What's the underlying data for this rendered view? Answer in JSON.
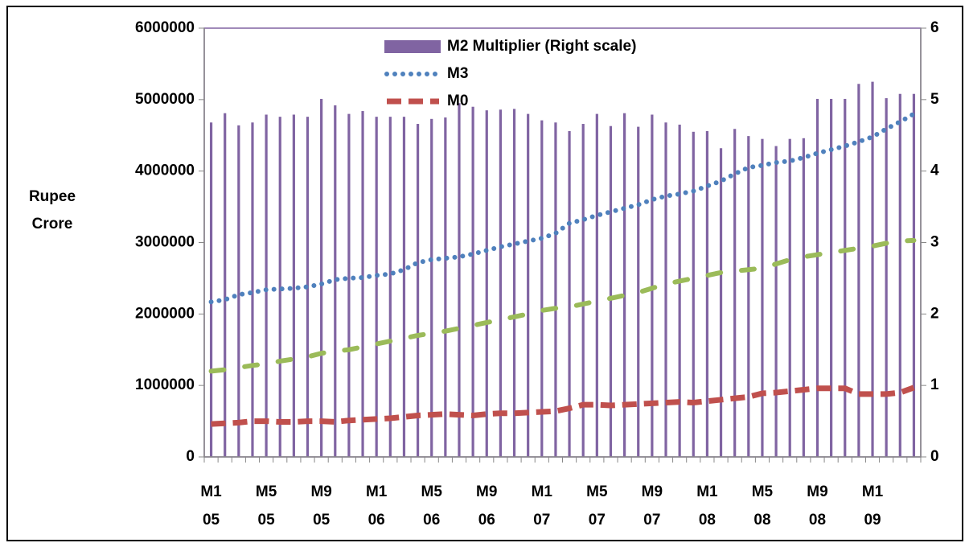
{
  "chart_data": {
    "type": "bar-line",
    "y_label": "Rupee Crore",
    "categories": [
      "M1 05",
      null,
      null,
      null,
      "M5 05",
      null,
      null,
      null,
      "M9 05",
      null,
      null,
      null,
      "M1 06",
      null,
      null,
      null,
      "M5 06",
      null,
      null,
      null,
      "M9 06",
      null,
      null,
      null,
      "M1 07",
      null,
      null,
      null,
      "M5 07",
      null,
      null,
      null,
      "M9 07",
      null,
      null,
      null,
      "M1 08",
      null,
      null,
      null,
      "M5 08",
      null,
      null,
      null,
      "M9 08",
      null,
      null,
      null,
      "M1 09",
      null,
      null,
      null
    ],
    "ylim": [
      0,
      6000000
    ],
    "yticks": [
      0,
      1000000,
      2000000,
      3000000,
      4000000,
      5000000,
      6000000
    ],
    "y2lim": [
      0,
      6
    ],
    "y2ticks": [
      0,
      1,
      2,
      3,
      4,
      5,
      6
    ],
    "legend": "top-center",
    "series": [
      {
        "name": "M2 Multiplier (Right scale)",
        "type": "bar",
        "axis": "y2",
        "color": "#8064a2",
        "values": [
          4.68,
          4.81,
          4.64,
          4.68,
          4.79,
          4.76,
          4.79,
          4.76,
          5.01,
          4.92,
          4.8,
          4.84,
          4.76,
          4.76,
          4.76,
          4.66,
          4.73,
          4.75,
          4.95,
          4.9,
          4.85,
          4.86,
          4.87,
          4.8,
          4.71,
          4.68,
          4.56,
          4.66,
          4.8,
          4.63,
          4.81,
          4.62,
          4.79,
          4.68,
          4.65,
          4.55,
          4.56,
          4.32,
          4.59,
          4.49,
          4.45,
          4.35,
          4.45,
          4.46,
          5.01,
          5.01,
          5.01,
          5.22,
          5.25,
          5.02,
          5.08,
          5.08
        ]
      },
      {
        "name": "M3",
        "type": "line",
        "style": "dotted",
        "color": "#4f81bd",
        "values": [
          2170000,
          2200000,
          2270000,
          2300000,
          2340000,
          2350000,
          2360000,
          2380000,
          2420000,
          2480000,
          2500000,
          2510000,
          2540000,
          2560000,
          2620000,
          2720000,
          2760000,
          2780000,
          2800000,
          2840000,
          2890000,
          2940000,
          2980000,
          3020000,
          3060000,
          3130000,
          3270000,
          3320000,
          3380000,
          3430000,
          3480000,
          3530000,
          3600000,
          3650000,
          3680000,
          3720000,
          3790000,
          3860000,
          3960000,
          4050000,
          4080000,
          4120000,
          4140000,
          4190000,
          4250000,
          4300000,
          4350000,
          4410000,
          4480000,
          4590000,
          4690000,
          4800000
        ]
      },
      {
        "name": "M0",
        "type": "line",
        "style": "dashed",
        "color": "#c0504d",
        "values": [
          460000,
          470000,
          480000,
          500000,
          500000,
          490000,
          490000,
          500000,
          500000,
          490000,
          510000,
          520000,
          530000,
          540000,
          560000,
          580000,
          590000,
          600000,
          590000,
          580000,
          600000,
          610000,
          610000,
          620000,
          630000,
          640000,
          680000,
          730000,
          730000,
          720000,
          730000,
          740000,
          750000,
          760000,
          770000,
          760000,
          780000,
          800000,
          820000,
          840000,
          890000,
          900000,
          920000,
          940000,
          960000,
          960000,
          960000,
          880000,
          880000,
          880000,
          900000,
          970000
        ]
      },
      {
        "type": "line",
        "style": "long-dash",
        "color": "#9bbb59",
        "values": [
          1200000,
          1220000,
          1250000,
          1280000,
          1300000,
          1340000,
          1370000,
          1400000,
          1450000,
          1480000,
          1500000,
          1540000,
          1580000,
          1620000,
          1660000,
          1700000,
          1730000,
          1760000,
          1800000,
          1840000,
          1880000,
          1920000,
          1960000,
          2000000,
          2050000,
          2080000,
          2100000,
          2140000,
          2180000,
          2220000,
          2260000,
          2300000,
          2360000,
          2420000,
          2460000,
          2500000,
          2540000,
          2580000,
          2600000,
          2620000,
          2640000,
          2700000,
          2760000,
          2800000,
          2830000,
          2860000,
          2890000,
          2920000,
          2950000,
          2990000,
          3020000,
          3030000
        ]
      }
    ]
  }
}
